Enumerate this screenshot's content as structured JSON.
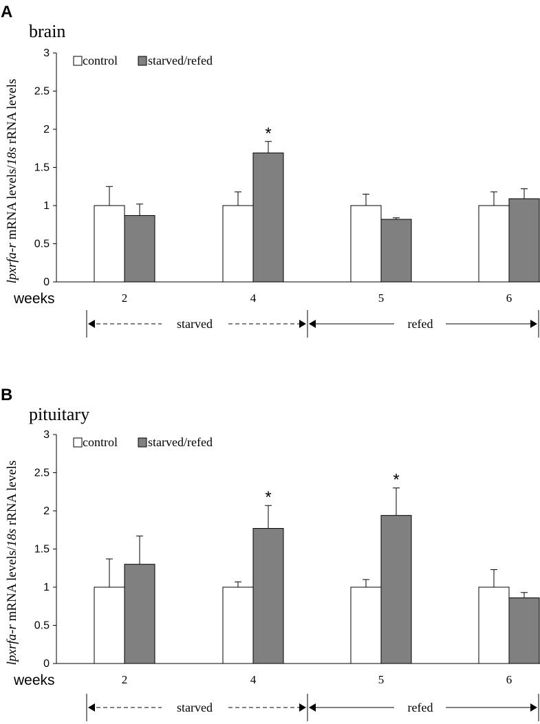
{
  "colors": {
    "control": "#ffffff",
    "starved_refed": "#808080",
    "stroke": "#000000"
  },
  "chart_data": [
    {
      "type": "bar",
      "panel": "A",
      "title": "brain",
      "xlabel": "weeks",
      "ylabel_italic_1": "lpxrfa-r",
      "ylabel_mid": " mRNA levels/",
      "ylabel_italic_2": "18s",
      "ylabel_end": " rRNA levels",
      "categories": [
        "2",
        "4",
        "5",
        "6"
      ],
      "yticks": [
        "0",
        "0.5",
        "1",
        "1.5",
        "2",
        "2.5",
        "3"
      ],
      "ylim": [
        0,
        3
      ],
      "series": [
        {
          "name": "control",
          "values": [
            1.0,
            1.0,
            1.0,
            1.0
          ],
          "errors": [
            0.25,
            0.18,
            0.15,
            0.18
          ]
        },
        {
          "name": "starved/refed",
          "values": [
            0.87,
            1.69,
            0.82,
            1.09
          ],
          "errors": [
            0.15,
            0.15,
            0.02,
            0.13
          ]
        }
      ],
      "significance": [
        "",
        "*",
        "",
        ""
      ],
      "phases": [
        {
          "label": "starved",
          "style": "dashed"
        },
        {
          "label": "refed",
          "style": "solid"
        }
      ]
    },
    {
      "type": "bar",
      "panel": "B",
      "title": "pituitary",
      "xlabel": "weeks",
      "ylabel_italic_1": "lpxrfa-r",
      "ylabel_mid": " mRNA levels/",
      "ylabel_italic_2": "18s",
      "ylabel_end": " rRNA levels",
      "categories": [
        "2",
        "4",
        "5",
        "6"
      ],
      "yticks": [
        "0",
        "0.5",
        "1",
        "1.5",
        "2",
        "2.5",
        "3"
      ],
      "ylim": [
        0,
        3
      ],
      "series": [
        {
          "name": "control",
          "values": [
            1.0,
            1.0,
            1.0,
            1.0
          ],
          "errors": [
            0.37,
            0.07,
            0.1,
            0.23
          ]
        },
        {
          "name": "starved/refed",
          "values": [
            1.3,
            1.77,
            1.94,
            0.86
          ],
          "errors": [
            0.37,
            0.3,
            0.36,
            0.07
          ]
        }
      ],
      "significance": [
        "",
        "*",
        "*",
        ""
      ],
      "phases": [
        {
          "label": "starved",
          "style": "dashed"
        },
        {
          "label": "refed",
          "style": "solid"
        }
      ]
    }
  ]
}
